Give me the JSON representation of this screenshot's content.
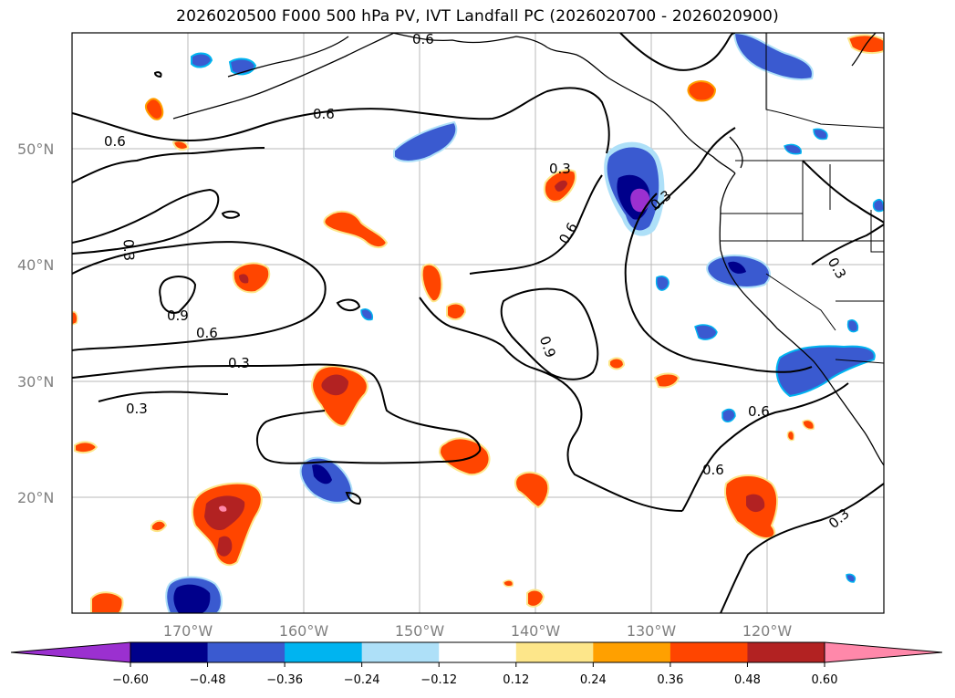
{
  "title": "2026020500 F000 500 hPa PV, IVT Landfall PC (2026020700 - 2026020900)",
  "lat_labels": [
    "50°N",
    "40°N",
    "30°N",
    "20°N"
  ],
  "lon_labels": [
    "170°W",
    "160°W",
    "150°W",
    "140°W",
    "130°W",
    "120°W"
  ],
  "contour_labels": [
    "0.6",
    "0.6",
    "0.3",
    "0.9",
    "0.6",
    "0.3",
    "0.3",
    "0.6",
    "0.3",
    "0.9",
    "0.3",
    "0.6",
    "0.6",
    "0.3",
    "0.3",
    "0.6"
  ],
  "colorbar": {
    "ticks": [
      "−0.60",
      "−0.48",
      "−0.36",
      "−0.24",
      "−0.12",
      "0.12",
      "0.24",
      "0.36",
      "0.48",
      "0.60"
    ],
    "colors": [
      "#9b30d0",
      "#00008b",
      "#3a5ad0",
      "#00b4f0",
      "#aee0f8",
      "#ffffff",
      "#fde68a",
      "#ffa000",
      "#ff4500",
      "#b22222",
      "#ff88aa"
    ]
  },
  "chart_data": {
    "type": "contour-map",
    "title": "2026020500 F000 500 hPa PV, IVT Landfall PC (2026020700 - 2026020900)",
    "field_filled": "IVT Landfall PC",
    "field_contoured": "500 hPa PV",
    "contour_levels": [
      0.3,
      0.6,
      0.9
    ],
    "fill_levels": [
      -0.6,
      -0.48,
      -0.36,
      -0.24,
      -0.12,
      0.12,
      0.24,
      0.36,
      0.48,
      0.6
    ],
    "lon_range": [
      "180°W",
      "110°W"
    ],
    "lat_range": [
      "10°N",
      "60°N"
    ],
    "grid": true
  }
}
